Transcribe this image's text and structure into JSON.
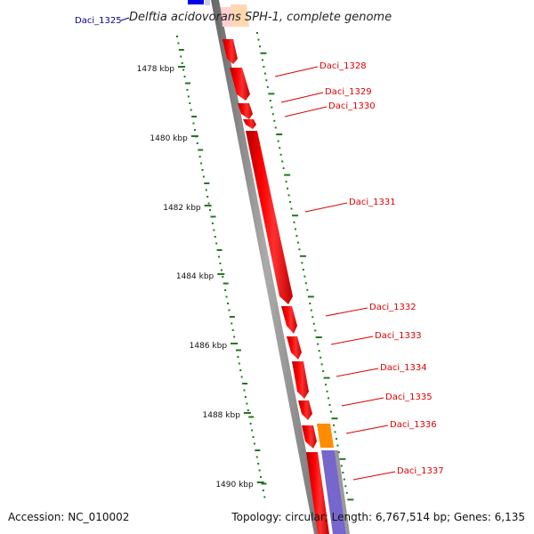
{
  "title": "Delftia acidovorans SPH-1, complete genome",
  "accession_text": "Accession: NC_010002",
  "summary_text": "Topology: circular; Length: 6,767,514 bp; Genes: 6,135",
  "colors": {
    "forward_gene": "#ff0000",
    "blue_gene": "#0000ee",
    "orange_gene": "#ff8c00",
    "pale_orange": "#ffd8b0",
    "purple_band": "#7766cc",
    "backbone": "#888888",
    "gc_ticks": "#227722",
    "label_red": "#dd0000",
    "label_blue": "#000099"
  },
  "scale_labels": [
    "1478 kbp",
    "1480 kbp",
    "1482 kbp",
    "1484 kbp",
    "1486 kbp",
    "1488 kbp",
    "1490 kbp"
  ],
  "genes": [
    {
      "name": "Daci_1325",
      "color": "blue"
    },
    {
      "name": "Daci_1328",
      "color": "red"
    },
    {
      "name": "Daci_1329",
      "color": "red"
    },
    {
      "name": "Daci_1330",
      "color": "red"
    },
    {
      "name": "Daci_1331",
      "color": "red"
    },
    {
      "name": "Daci_1332",
      "color": "red"
    },
    {
      "name": "Daci_1333",
      "color": "red"
    },
    {
      "name": "Daci_1334",
      "color": "red"
    },
    {
      "name": "Daci_1335",
      "color": "red"
    },
    {
      "name": "Daci_1336",
      "color": "red"
    },
    {
      "name": "Daci_1337",
      "color": "red"
    }
  ]
}
